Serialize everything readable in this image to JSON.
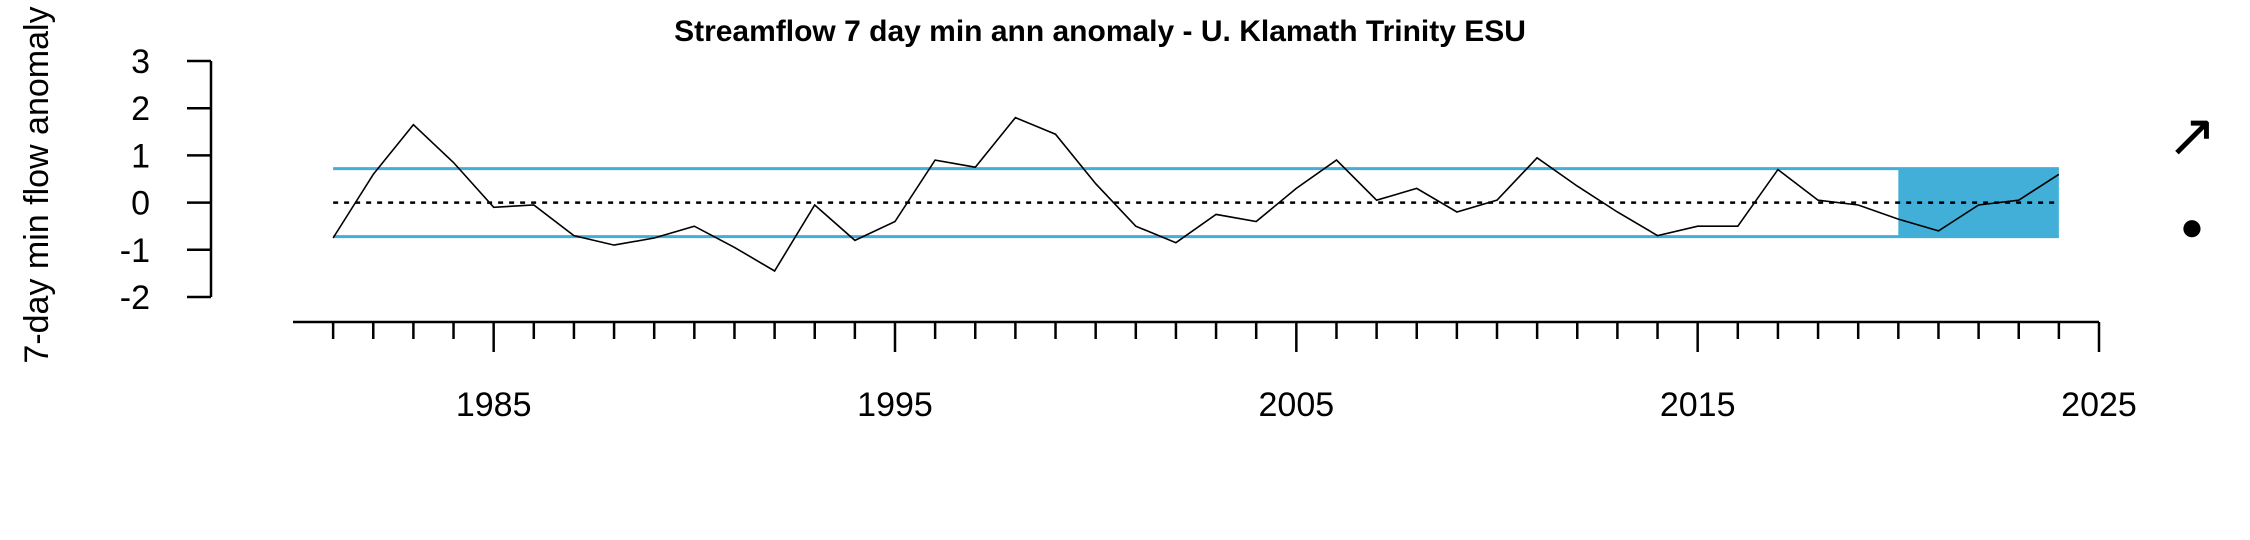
{
  "chart_data": {
    "type": "line",
    "title": "Streamflow 7 day min ann anomaly - U. Klamath Trinity ESU",
    "xlabel": "",
    "ylabel": "7-day min flow anomaly",
    "xlim": [
      1981,
      2024
    ],
    "ylim": [
      -2,
      3
    ],
    "x_ticks": [
      1985,
      1995,
      2005,
      2015,
      2025
    ],
    "y_ticks": [
      -2,
      -1,
      0,
      1,
      2,
      3
    ],
    "x": [
      1981,
      1982,
      1983,
      1984,
      1985,
      1986,
      1987,
      1988,
      1989,
      1990,
      1991,
      1992,
      1993,
      1994,
      1995,
      1996,
      1997,
      1998,
      1999,
      2000,
      2001,
      2002,
      2003,
      2004,
      2005,
      2006,
      2007,
      2008,
      2009,
      2010,
      2011,
      2012,
      2013,
      2014,
      2015,
      2016,
      2017,
      2018,
      2019,
      2020,
      2021,
      2022,
      2023,
      2024
    ],
    "series": [
      {
        "values": [
          -0.75,
          0.6,
          1.65,
          0.85,
          -0.1,
          -0.05,
          -0.7,
          -0.9,
          -0.75,
          -0.5,
          -0.95,
          -1.45,
          -0.05,
          -0.8,
          -0.4,
          0.9,
          0.75,
          1.8,
          1.45,
          0.4,
          -0.5,
          -0.85,
          -0.25,
          -0.4,
          0.3,
          0.9,
          0.05,
          0.3,
          -0.2,
          0.05,
          0.95,
          0.35,
          -0.2,
          -0.7,
          -0.5,
          -0.5,
          0.7,
          0.05,
          -0.05,
          -0.35,
          -0.6,
          -0.05,
          0.05,
          0.6
        ],
        "color": "#000000"
      }
    ],
    "mean": 0,
    "sd_upper": 0.72,
    "sd_lower": -0.72,
    "shaded_x_range": [
      2020,
      2024
    ],
    "band_color": "#41AFD8",
    "mean_line_style": "dotted",
    "trend_symbol": "↗",
    "status_symbol": "●",
    "grid": false,
    "legend": "none"
  }
}
